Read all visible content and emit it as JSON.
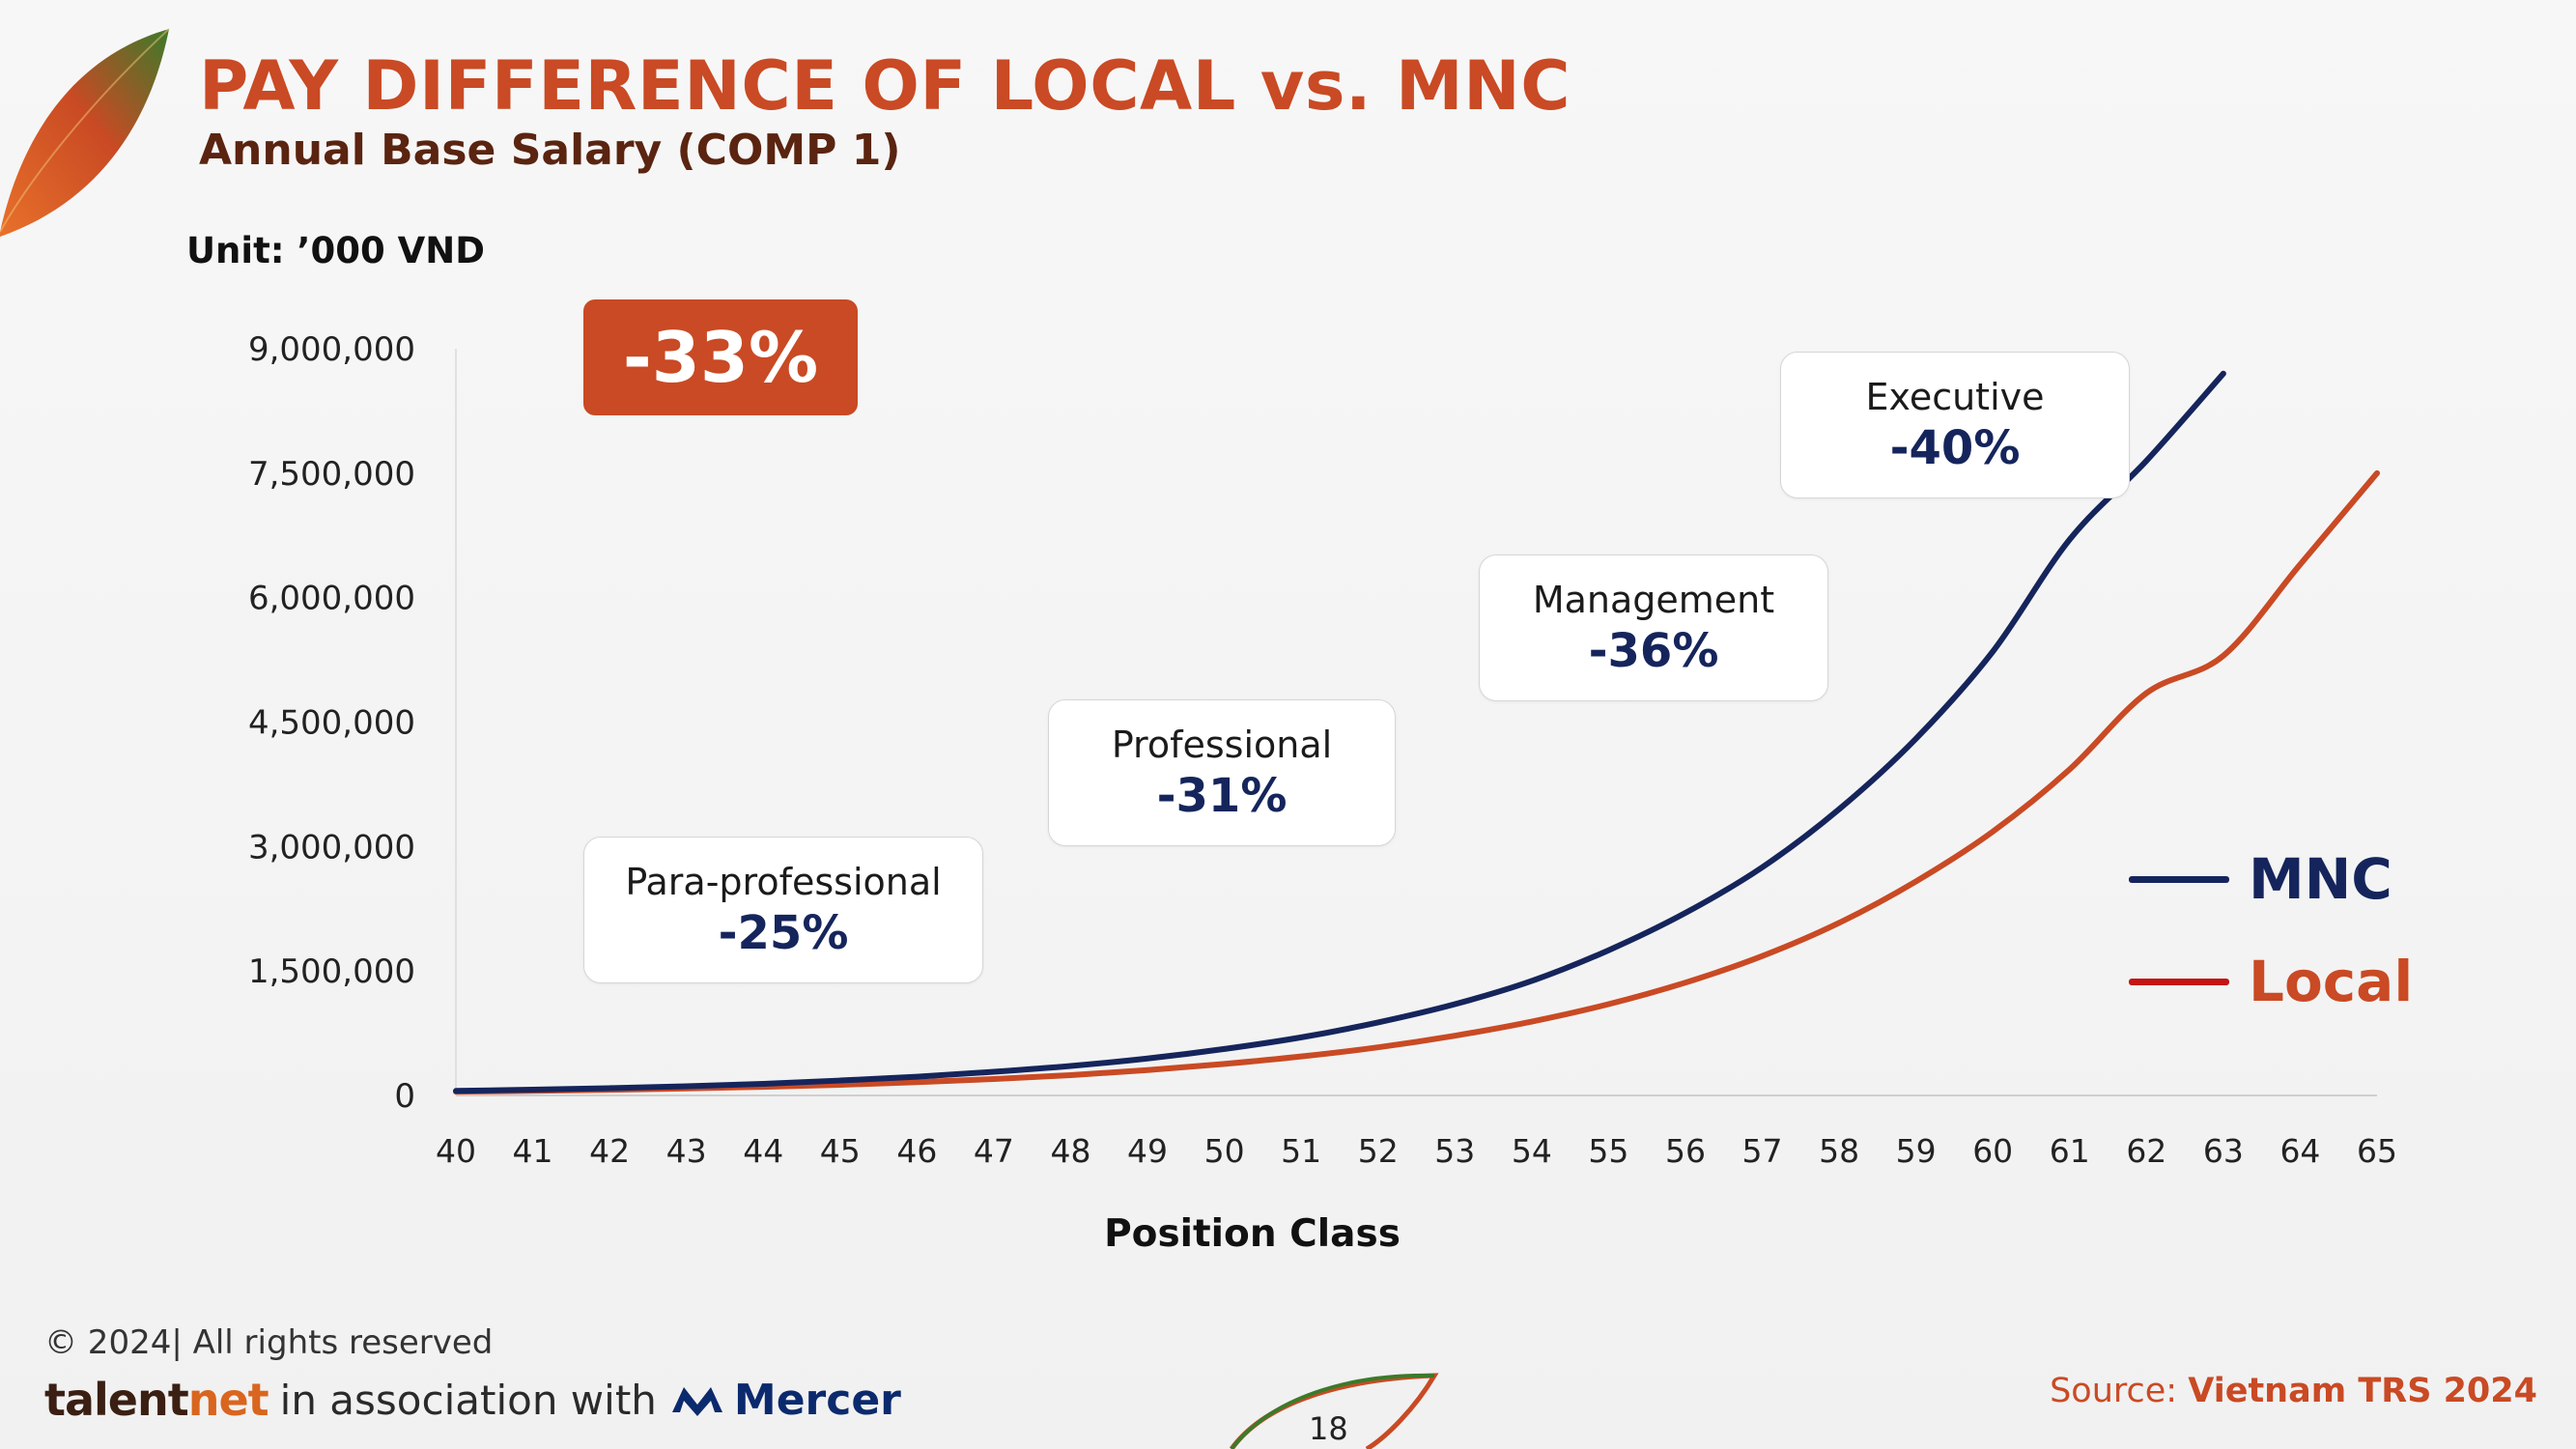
{
  "header": {
    "title": "PAY DIFFERENCE OF LOCAL vs. MNC",
    "subtitle": "Annual Base Salary (COMP 1)",
    "unit": "Unit: ’000 VND"
  },
  "overall_badge": "-33%",
  "callouts": [
    {
      "label": "Para-professional",
      "value": "-25%"
    },
    {
      "label": "Professional",
      "value": "-31%"
    },
    {
      "label": "Management",
      "value": "-36%"
    },
    {
      "label": "Executive",
      "value": "-40%"
    }
  ],
  "legend": [
    {
      "name": "MNC",
      "color": "#15255c"
    },
    {
      "name": "Local",
      "color": "#c94a24"
    }
  ],
  "footer": {
    "copyright": "© 2024| All rights reserved",
    "brand_talent": "talent",
    "brand_net": "net",
    "association": "in association with",
    "partner": "Mercer",
    "page_number": "18",
    "source_label": "Source:",
    "source_value": "Vietnam TRS 2024"
  },
  "chart_data": {
    "type": "line",
    "xlabel": "Position Class",
    "ylabel": "",
    "xlim": [
      40,
      65
    ],
    "ylim": [
      0,
      9000000
    ],
    "y_ticks": [
      0,
      1500000,
      3000000,
      4500000,
      6000000,
      7500000,
      9000000
    ],
    "y_tick_labels": [
      "0",
      "1,500,000",
      "3,000,000",
      "4,500,000",
      "6,000,000",
      "7,500,000",
      "9,000,000"
    ],
    "x": [
      40,
      41,
      42,
      43,
      44,
      45,
      46,
      47,
      48,
      49,
      50,
      51,
      52,
      53,
      54,
      55,
      56,
      57,
      58,
      59,
      60,
      61,
      62,
      63,
      64,
      65
    ],
    "series": [
      {
        "name": "MNC",
        "color": "#15255c",
        "values": [
          55000,
          70000,
          88000,
          110000,
          140000,
          180000,
          225000,
          285000,
          355000,
          445000,
          560000,
          700000,
          880000,
          1100000,
          1380000,
          1750000,
          2200000,
          2750000,
          3450000,
          4300000,
          5350000,
          6700000,
          7650000,
          8700000,
          null,
          null
        ]
      },
      {
        "name": "Local",
        "color": "#c94a24",
        "values": [
          45000,
          55000,
          68000,
          84000,
          104000,
          128000,
          160000,
          198000,
          245000,
          305000,
          380000,
          470000,
          580000,
          720000,
          890000,
          1100000,
          1360000,
          1680000,
          2080000,
          2580000,
          3180000,
          3930000,
          4850000,
          5300000,
          6400000,
          7500000
        ]
      }
    ],
    "grid": false,
    "legend_position": "right"
  }
}
